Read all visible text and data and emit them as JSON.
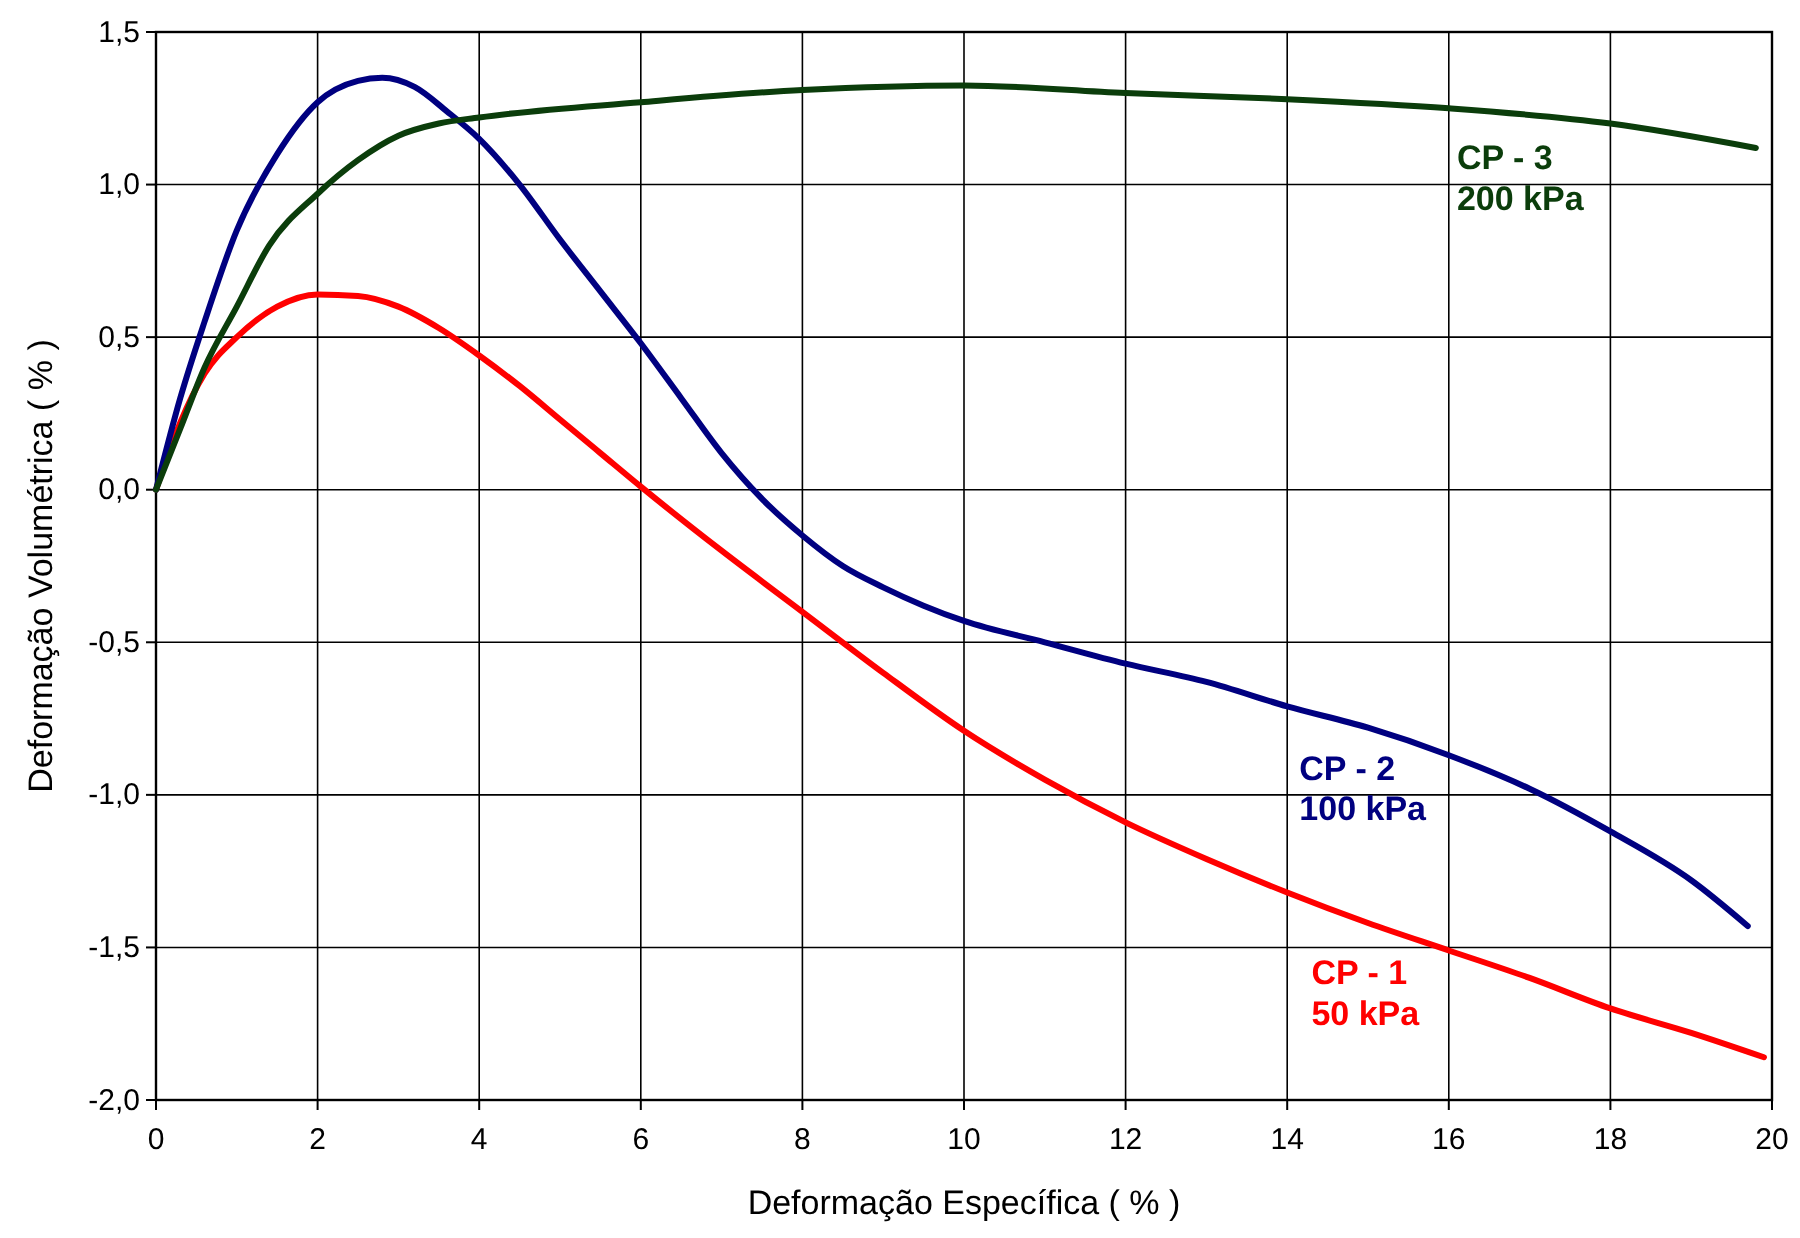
{
  "chart_data": {
    "type": "line",
    "xlabel": "Deformação Específica ( % )",
    "ylabel": "Deformação Volumétrica ( % )",
    "xlim": [
      0,
      20
    ],
    "xticks": [
      0,
      2,
      4,
      6,
      8,
      10,
      12,
      14,
      16,
      18,
      20
    ],
    "ylim": [
      -2,
      1.5
    ],
    "yticks": [
      {
        "value": -2,
        "label": "-2,0"
      },
      {
        "value": -1.5,
        "label": "-1,5"
      },
      {
        "value": -1,
        "label": "-1,0"
      },
      {
        "value": -0.5,
        "label": "-0,5"
      },
      {
        "value": 0,
        "label": "0,0"
      },
      {
        "value": 0.5,
        "label": "0,5"
      },
      {
        "value": 1,
        "label": "1,0"
      },
      {
        "value": 1.5,
        "label": "1,5"
      }
    ],
    "grid": true,
    "line_style": "solid",
    "marker": "none",
    "series": [
      {
        "name": "CP - 1\n50 kPa",
        "color": "#ff0000",
        "x": [
          0,
          0.3,
          0.6,
          1,
          1.5,
          2,
          2.5,
          3,
          3.5,
          4,
          4.5,
          5,
          5.5,
          6,
          7,
          8,
          9,
          10,
          11,
          12,
          13,
          14,
          15,
          16,
          17,
          18,
          19,
          19.9
        ],
        "values": [
          0,
          0.22,
          0.38,
          0.5,
          0.6,
          0.64,
          0.635,
          0.6,
          0.53,
          0.44,
          0.34,
          0.23,
          0.12,
          0.01,
          -0.2,
          -0.4,
          -0.6,
          -0.79,
          -0.95,
          -1.09,
          -1.21,
          -1.32,
          -1.42,
          -1.51,
          -1.6,
          -1.7,
          -1.78,
          -1.86
        ]
      },
      {
        "name": "CP - 2\n100 kPa",
        "color": "#000080",
        "x": [
          0,
          0.3,
          0.6,
          1,
          1.5,
          2,
          2.5,
          2.8,
          3.2,
          3.6,
          4,
          4.5,
          5,
          5.5,
          6,
          6.5,
          7,
          7.5,
          8,
          8.5,
          9,
          9.5,
          10,
          11,
          12,
          13,
          14,
          15,
          16,
          17,
          18,
          19,
          19.7
        ],
        "values": [
          0,
          0.3,
          0.55,
          0.85,
          1.1,
          1.27,
          1.34,
          1.35,
          1.32,
          1.24,
          1.15,
          1,
          0.82,
          0.65,
          0.48,
          0.3,
          0.12,
          -0.03,
          -0.15,
          -0.25,
          -0.32,
          -0.38,
          -0.43,
          -0.5,
          -0.57,
          -0.63,
          -0.71,
          -0.78,
          -0.87,
          -0.98,
          -1.12,
          -1.28,
          -1.43
        ]
      },
      {
        "name": "CP - 3\n200 kPa",
        "color": "#0b3d0b",
        "x": [
          0,
          0.3,
          0.6,
          1,
          1.4,
          2,
          2.5,
          3,
          3.5,
          4,
          6,
          8,
          10,
          12,
          14,
          16,
          18,
          19.8
        ],
        "values": [
          0,
          0.2,
          0.4,
          0.6,
          0.8,
          0.97,
          1.08,
          1.16,
          1.2,
          1.22,
          1.27,
          1.31,
          1.325,
          1.3,
          1.28,
          1.25,
          1.2,
          1.12
        ]
      }
    ]
  }
}
